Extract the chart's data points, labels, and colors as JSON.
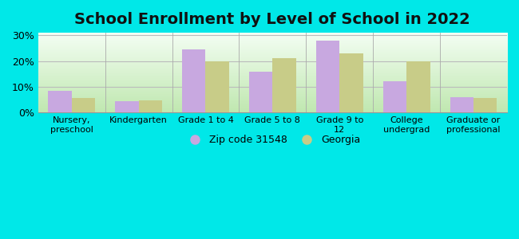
{
  "title": "School Enrollment by Level of School in 2022",
  "categories": [
    "Nursery,\npreschool",
    "Kindergarten",
    "Grade 1 to 4",
    "Grade 5 to 8",
    "Grade 9 to\n12",
    "College\nundergrad",
    "Graduate or\nprofessional"
  ],
  "zip_values": [
    8.5,
    4.5,
    24.5,
    16.0,
    28.0,
    12.0,
    6.0
  ],
  "georgia_values": [
    5.5,
    4.8,
    20.0,
    21.0,
    23.0,
    20.0,
    5.5
  ],
  "zip_color": "#c8a8e0",
  "georgia_color": "#c8cc88",
  "background_outer": "#00e8e8",
  "background_inner_bottom": "#c8e8c0",
  "background_inner_top": "#f8fff8",
  "yticks": [
    0,
    10,
    20,
    30
  ],
  "ylim": [
    0,
    31
  ],
  "legend_zip": "Zip code 31548",
  "legend_georgia": "Georgia",
  "title_fontsize": 14,
  "bar_width": 0.35,
  "grid_color": "#bbbbbb",
  "tick_fontsize": 9,
  "xlabel_fontsize": 8
}
